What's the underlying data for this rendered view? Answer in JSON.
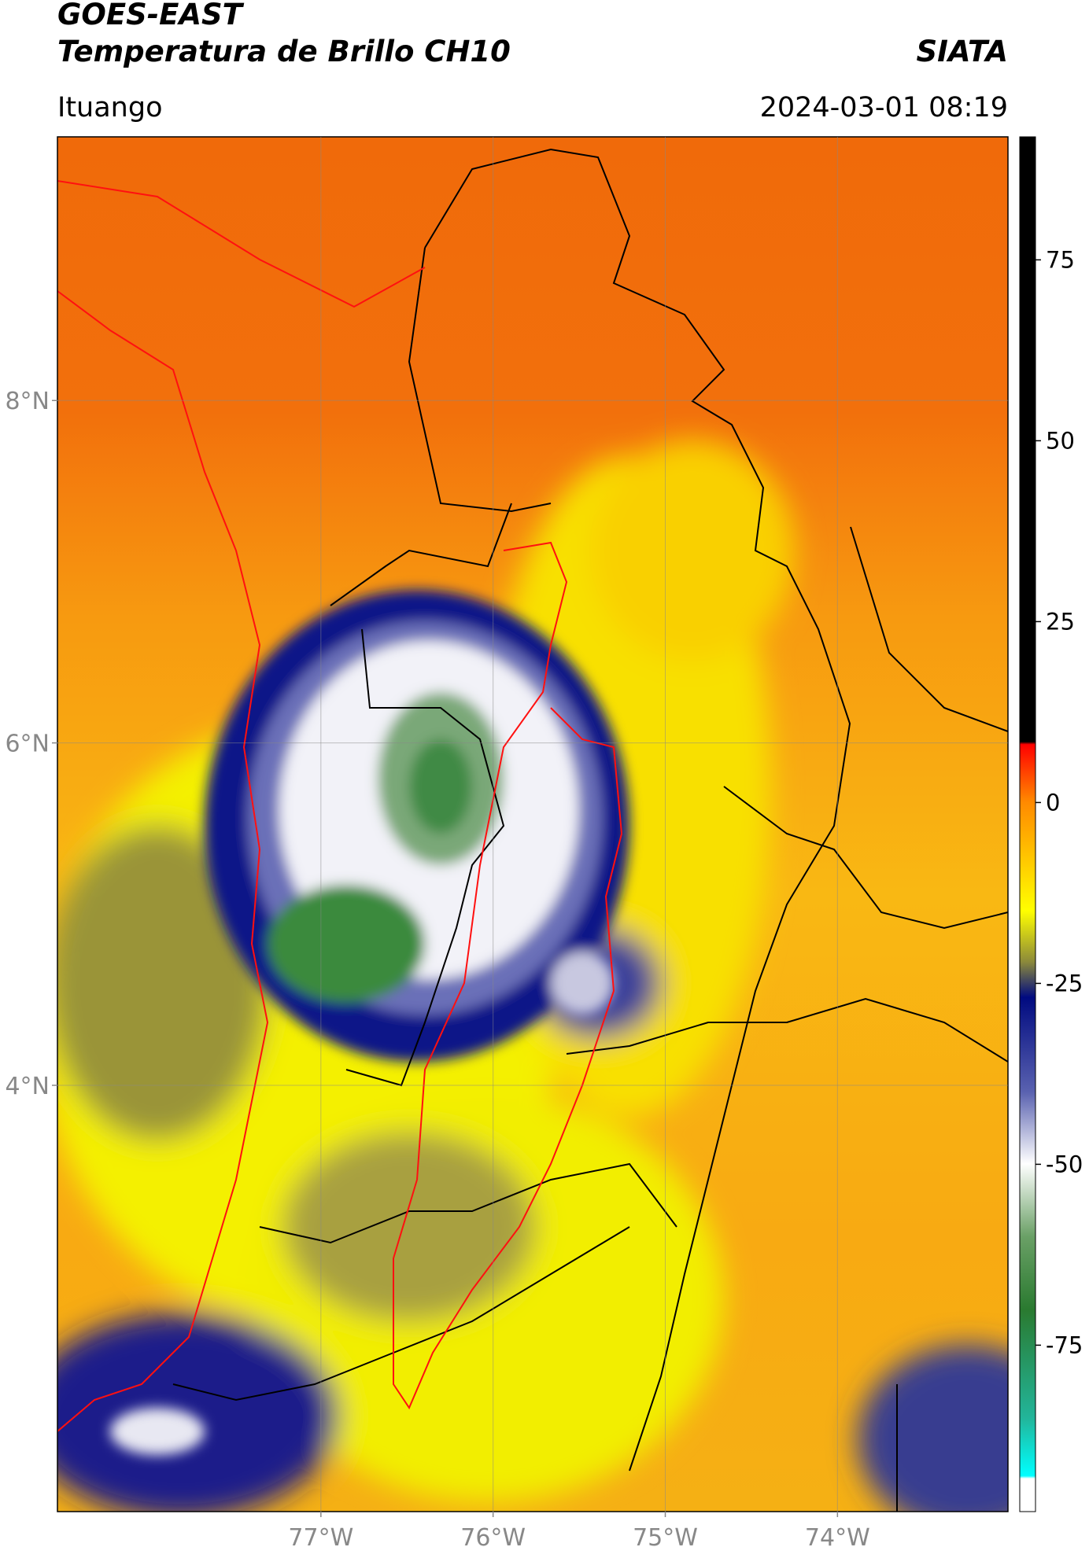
{
  "header": {
    "title": "GOES-EAST",
    "subtitle": "Temperatura de Brillo CH10",
    "source": "SIATA",
    "location": "Ituango",
    "datetime": "2024-03-01 08:19"
  },
  "map": {
    "lonlim": [
      -78.53,
      -73.01
    ],
    "latlim": [
      1.51,
      9.54
    ],
    "lon_ticks": [
      {
        "value": -77,
        "label": "77°W"
      },
      {
        "value": -76,
        "label": "76°W"
      },
      {
        "value": -75,
        "label": "75°W"
      },
      {
        "value": -74,
        "label": "74°W"
      }
    ],
    "lat_ticks": [
      {
        "value": 8,
        "label": "8°N"
      },
      {
        "value": 6,
        "label": "6°N"
      },
      {
        "value": 4,
        "label": "4°N"
      }
    ],
    "grid": true
  },
  "colorbar": {
    "lim": [
      -98,
      92
    ],
    "ticks": [
      75,
      50,
      25,
      0,
      -25,
      -50,
      -75
    ]
  }
}
